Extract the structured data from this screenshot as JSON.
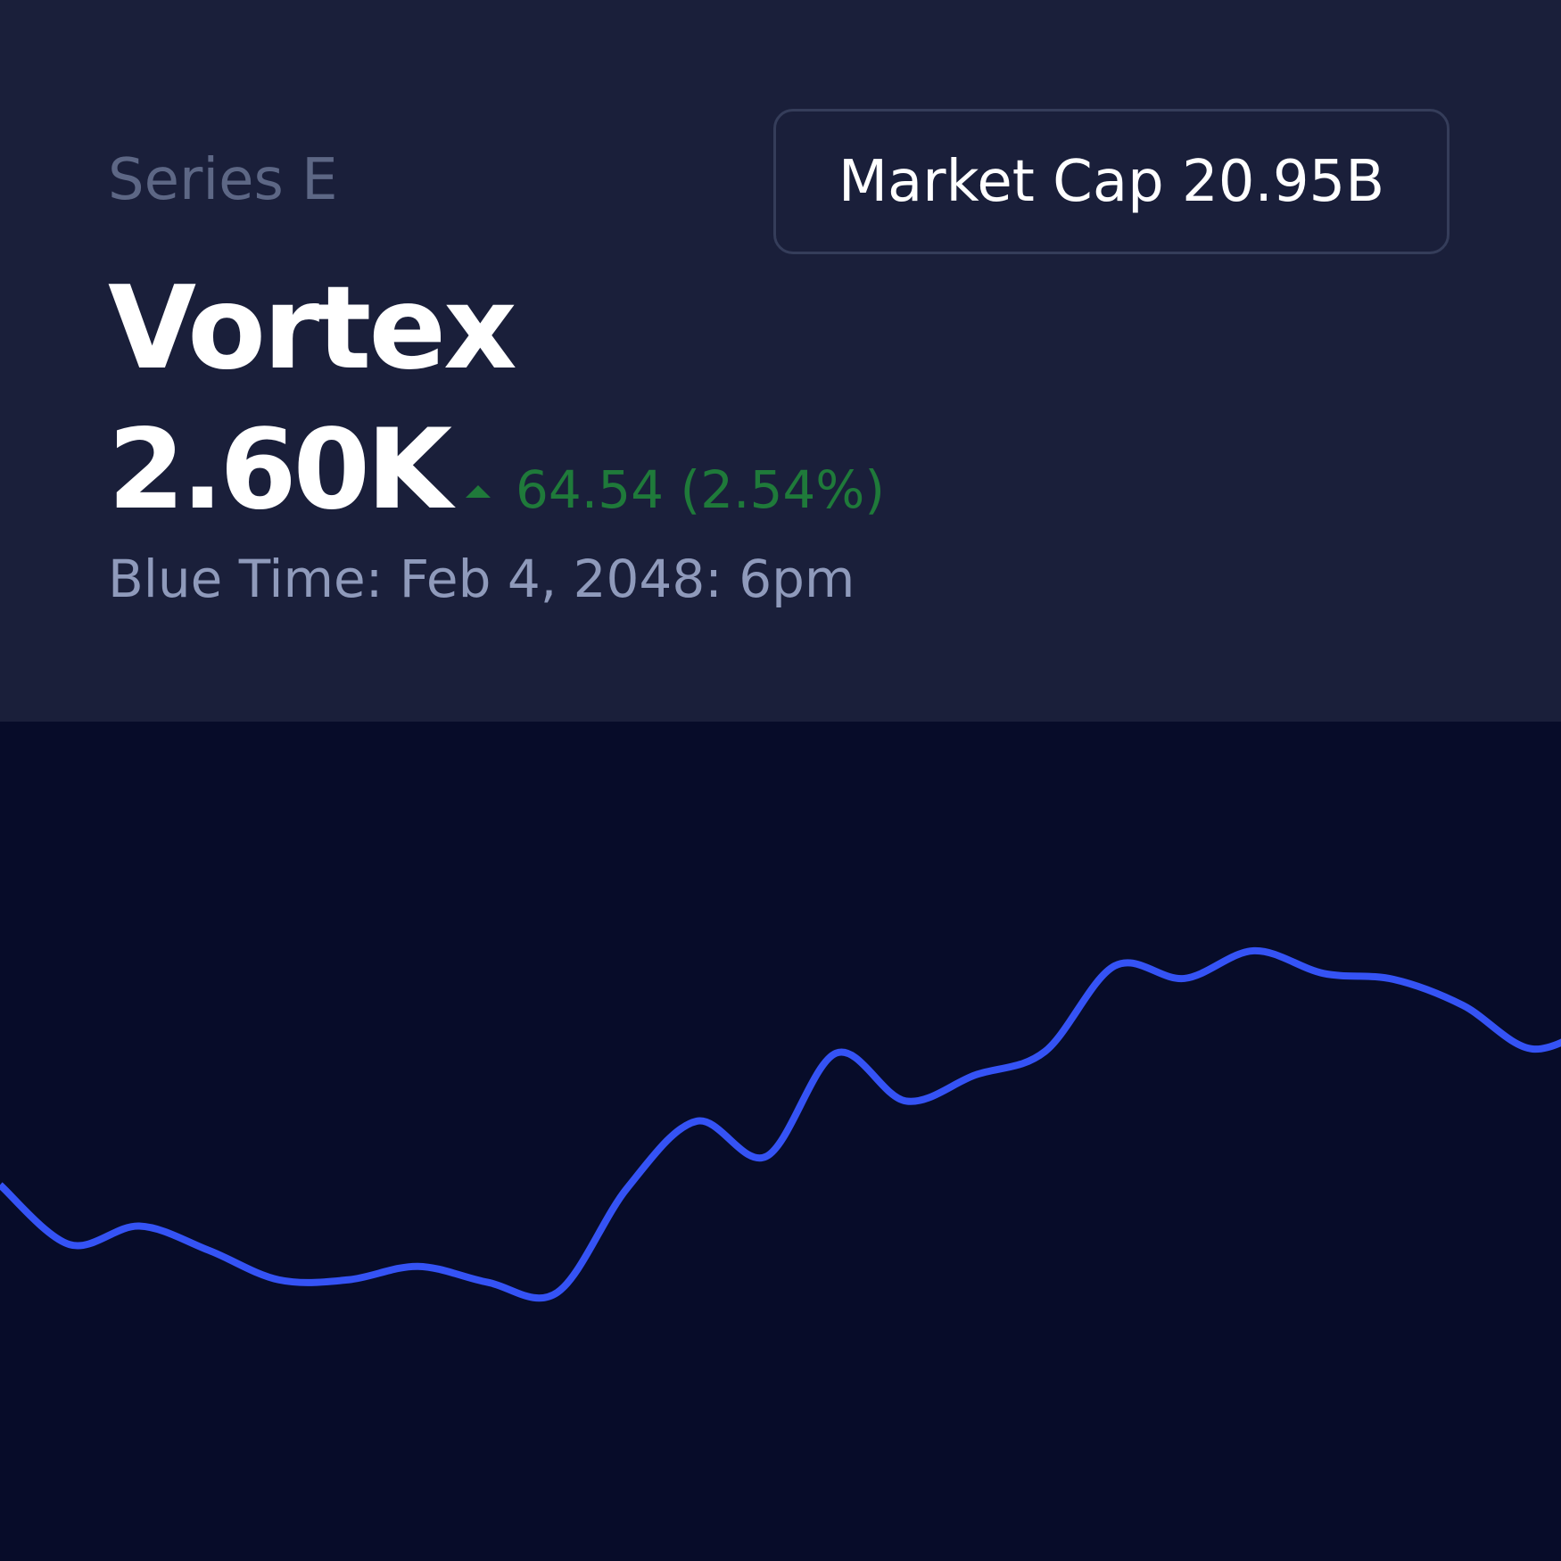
{
  "header": {
    "series_label": "Series E",
    "name": "Vortex",
    "price": "2.60K",
    "change": "64.54 (2.54%)",
    "time_label": "Blue Time:",
    "time_value": "Feb 4, 2048: 6pm",
    "market_cap_label": "Market Cap",
    "market_cap_value": "20.95B"
  },
  "chart_data": {
    "type": "line",
    "color": "#3553f5",
    "ylim": [
      0,
      100
    ],
    "values": [
      44.8,
      37.7,
      39.9,
      37.0,
      33.5,
      33.5,
      35.1,
      33.2,
      32.0,
      44.4,
      52.4,
      48.2,
      60.5,
      54.8,
      57.9,
      60.7,
      70.9,
      69.4,
      72.7,
      70.0,
      69.3,
      66.2,
      61.0,
      64.4
    ]
  }
}
